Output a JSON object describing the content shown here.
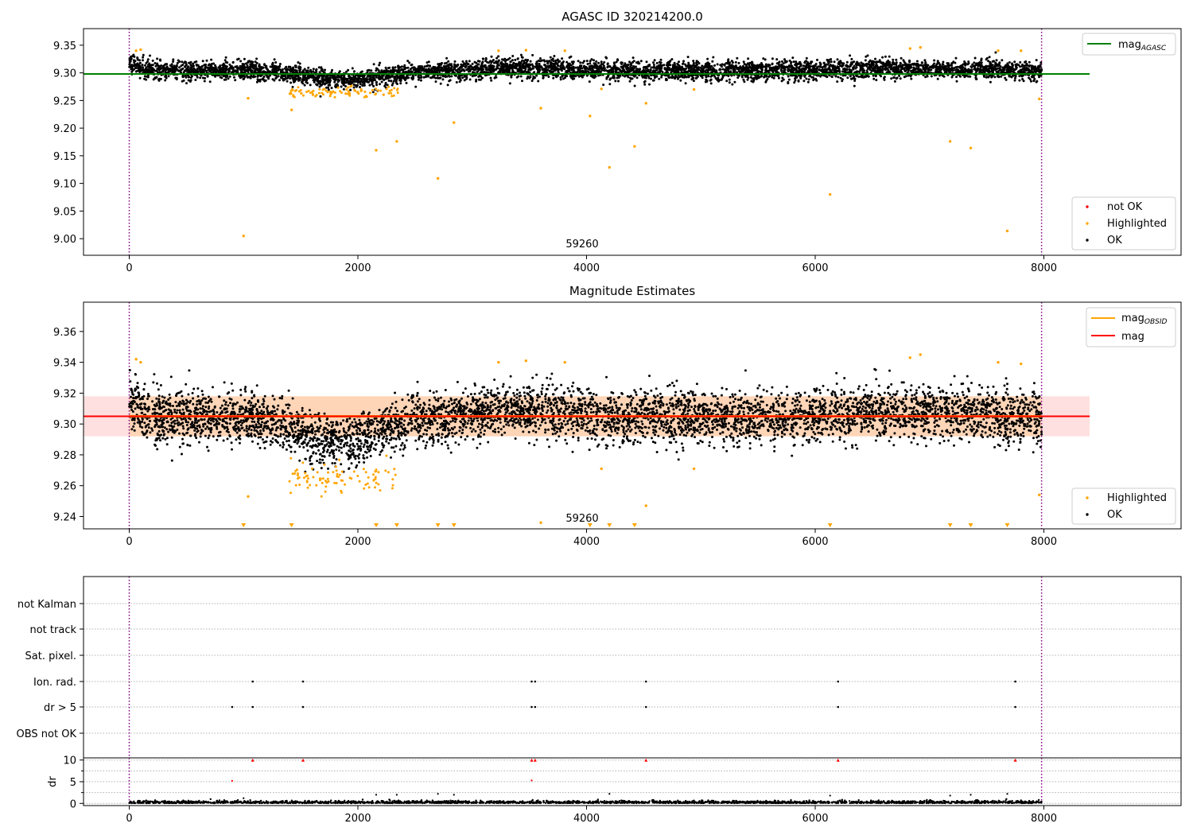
{
  "chart_data": [
    {
      "type": "scatter",
      "title": "AGASC ID 320214200.0",
      "xlim": [
        -400,
        9200
      ],
      "ylim": [
        8.97,
        9.38
      ],
      "xticks": [
        0,
        2000,
        4000,
        6000,
        8000
      ],
      "xtick_labels": [
        "0",
        "2000",
        "4000",
        "6000",
        "8000"
      ],
      "yticks": [
        9.0,
        9.05,
        9.1,
        9.15,
        9.2,
        9.25,
        9.3,
        9.35
      ],
      "ytick_labels": [
        "9.00",
        "9.05",
        "9.10",
        "9.15",
        "9.20",
        "9.25",
        "9.30",
        "9.35"
      ],
      "annotation": {
        "text": "59260",
        "x": 4000,
        "y": 8.985
      },
      "vlines": [
        0,
        7980
      ],
      "series": [
        {
          "name": "not OK",
          "color": "#ff0000",
          "points": []
        },
        {
          "name": "Highlighted",
          "color": "#ffa500",
          "points": [
            [
              1000,
              9.005
            ],
            [
              1040,
              9.254
            ],
            [
              1420,
              9.233
            ],
            [
              2160,
              9.16
            ],
            [
              2340,
              9.176
            ],
            [
              2700,
              9.109
            ],
            [
              2840,
              9.21
            ],
            [
              3600,
              9.236
            ],
            [
              4030,
              9.222
            ],
            [
              4130,
              9.271
            ],
            [
              4200,
              9.129
            ],
            [
              4420,
              9.167
            ],
            [
              4520,
              9.245
            ],
            [
              4940,
              9.27
            ],
            [
              6130,
              9.08
            ],
            [
              7180,
              9.176
            ],
            [
              7360,
              9.164
            ],
            [
              7680,
              9.014
            ],
            [
              7960,
              9.253
            ],
            [
              60,
              9.34
            ],
            [
              100,
              9.342
            ],
            [
              3230,
              9.34
            ],
            [
              3470,
              9.341
            ],
            [
              3810,
              9.34
            ],
            [
              6830,
              9.344
            ],
            [
              6920,
              9.346
            ],
            [
              7600,
              9.34
            ],
            [
              7800,
              9.34
            ]
          ]
        },
        {
          "name": "OK",
          "color": "#000000",
          "points": []
        }
      ],
      "hline": {
        "name": "mag_AGASC",
        "y": 9.298,
        "x_range": [
          -400,
          8400
        ],
        "color": "#008000"
      },
      "legend_lines": [
        "mag",
        "AGASC"
      ],
      "legend_placement": [
        "top-right",
        "bottom-right"
      ]
    },
    {
      "type": "scatter",
      "title": "Magnitude Estimates",
      "xlim": [
        -400,
        9200
      ],
      "ylim": [
        9.232,
        9.379
      ],
      "xticks": [
        0,
        2000,
        4000,
        6000,
        8000
      ],
      "xtick_labels": [
        "0",
        "2000",
        "4000",
        "6000",
        "8000"
      ],
      "yticks": [
        9.24,
        9.26,
        9.28,
        9.3,
        9.32,
        9.34,
        9.36
      ],
      "ytick_labels": [
        "9.24",
        "9.26",
        "9.28",
        "9.30",
        "9.32",
        "9.34",
        "9.36"
      ],
      "annotation": {
        "text": "59260",
        "x": 4000,
        "y": 9.236
      },
      "vlines": [
        0,
        7980
      ],
      "band": {
        "y_low": 9.292,
        "y_high": 9.318,
        "x_range": [
          -400,
          8400
        ],
        "color": "#ffcccc"
      },
      "hline": {
        "name": "mag",
        "y": 9.305,
        "x_range": [
          -400,
          8400
        ],
        "color": "#ff0000"
      },
      "obsid_line": {
        "name": "mag_OBSID",
        "y": 9.305,
        "x_range": [
          0,
          7980
        ],
        "color": "#ffa500"
      },
      "legend_lines": [
        "mag",
        "OBSID",
        "mag"
      ],
      "legend_points": [
        "Highlighted",
        "OK"
      ],
      "highlighted_points": [
        [
          1040,
          9.253
        ],
        [
          3600,
          9.236
        ],
        [
          4130,
          9.271
        ],
        [
          4520,
          9.247
        ],
        [
          4940,
          9.271
        ],
        [
          7960,
          9.254
        ],
        [
          60,
          9.342
        ],
        [
          100,
          9.34
        ],
        [
          3230,
          9.34
        ],
        [
          3470,
          9.341
        ],
        [
          3810,
          9.34
        ],
        [
          6830,
          9.343
        ],
        [
          6920,
          9.345
        ],
        [
          7600,
          9.34
        ],
        [
          7800,
          9.339
        ]
      ],
      "out_of_range_markers_x": [
        1000,
        1420,
        2160,
        2340,
        2700,
        2840,
        4030,
        4200,
        4420,
        6130,
        7180,
        7360,
        7680
      ],
      "legend_placement": [
        "top-right",
        "bottom-right"
      ]
    },
    {
      "type": "scatter",
      "title": "",
      "xlim": [
        -400,
        9200
      ],
      "xticks": [
        0,
        2000,
        4000,
        6000,
        8000
      ],
      "xtick_labels": [
        "0",
        "2000",
        "4000",
        "6000",
        "8000"
      ],
      "flag_rows": [
        "not Kalman",
        "not track",
        "Sat. pixel.",
        "Ion. rad.",
        "dr > 5",
        "OBS not OK"
      ],
      "flag_points": {
        "Ion. rad.": [
          1080,
          1520,
          3520,
          3550,
          4520,
          6200,
          7750
        ],
        "dr > 5": [
          900,
          1080,
          1520,
          3520,
          3550,
          4520,
          6200,
          7750
        ]
      },
      "dr_ylabel": "dr",
      "dr_yticks": [
        0,
        5,
        10
      ],
      "dr_ytick_labels": [
        "0",
        "5",
        "10"
      ],
      "dr_ylim": [
        -0.5,
        10.5
      ],
      "dr_capped_x": [
        1080,
        1520,
        3520,
        3550,
        4520,
        6200,
        7750
      ],
      "dr_outliers": [
        [
          900,
          5.2
        ],
        [
          3520,
          5.3
        ],
        [
          1000,
          1.2
        ],
        [
          2160,
          2.0
        ],
        [
          2340,
          2.0
        ],
        [
          2700,
          2.2
        ],
        [
          2840,
          2.0
        ],
        [
          4200,
          2.2
        ],
        [
          6130,
          1.8
        ],
        [
          7180,
          1.8
        ],
        [
          7360,
          2.0
        ],
        [
          7680,
          2.2
        ]
      ],
      "vlines": [
        0,
        7980
      ],
      "grid": true
    }
  ]
}
